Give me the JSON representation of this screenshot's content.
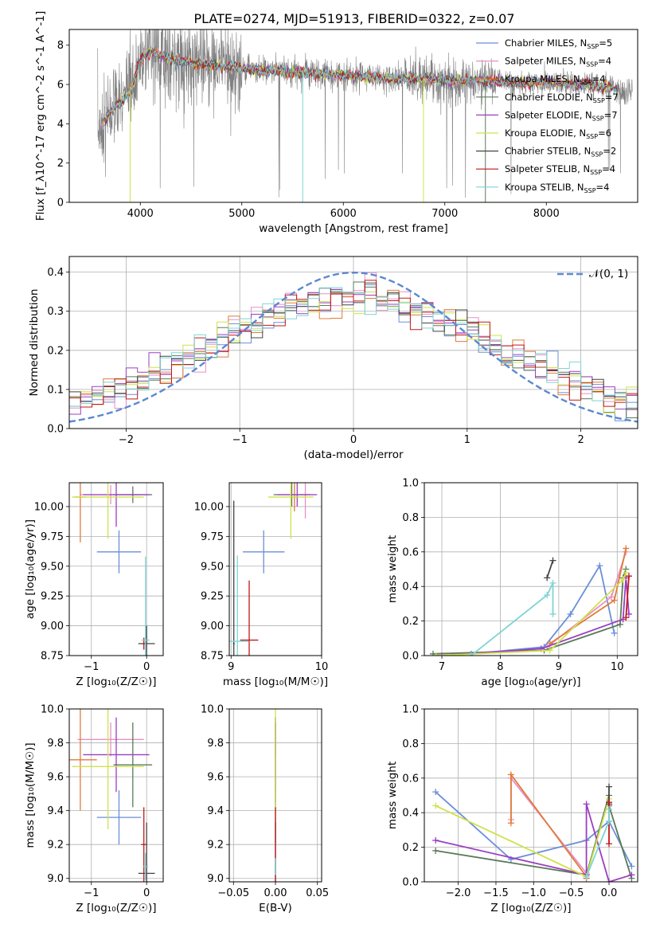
{
  "figure_title": "PLATE=0274, MJD=51913, FIBERID=0322, z=0.07",
  "models": [
    {
      "name": "Chabrier MILES",
      "nssp": "5",
      "color": "#6a8fd8"
    },
    {
      "name": "Salpeter MILES",
      "nssp": "4",
      "color": "#e890c8"
    },
    {
      "name": "Kroupa MILES",
      "nssp": "4",
      "color": "#e07b39"
    },
    {
      "name": "Chabrier ELODIE",
      "nssp": "7",
      "color": "#5a7a5a"
    },
    {
      "name": "Salpeter ELODIE",
      "nssp": "7",
      "color": "#9b3fc0"
    },
    {
      "name": "Kroupa ELODIE",
      "nssp": "6",
      "color": "#cfe24a"
    },
    {
      "name": "Chabrier STELIB",
      "nssp": "2",
      "color": "#444444"
    },
    {
      "name": "Salpeter STELIB",
      "nssp": "4",
      "color": "#c01818"
    },
    {
      "name": "Kroupa STELIB",
      "nssp": "4",
      "color": "#7fd4d4"
    }
  ],
  "chart_data": [
    {
      "id": "spectrum",
      "type": "line",
      "xlabel": "wavelength [Angstrom, rest frame]",
      "ylabel": "Flux [f_λ10^-17 erg cm^-2 s^-1 A^-1]",
      "xlim": [
        3300,
        8900
      ],
      "ylim": [
        0,
        8.8
      ],
      "xticks": [
        "4000",
        "5000",
        "6000",
        "7000",
        "8000"
      ],
      "yticks": [
        "0",
        "2",
        "4",
        "6",
        "8"
      ],
      "legend_position": "upper right",
      "data_color": "#808080",
      "continuum": {
        "x": [
          3550,
          3700,
          3800,
          3900,
          4000,
          4100,
          4300,
          4500,
          4700,
          5000,
          5300,
          5600,
          5900,
          6200,
          6500,
          6800,
          7100,
          7400,
          7700,
          8000,
          8300,
          8600,
          8800
        ],
        "y": [
          3.3,
          4.6,
          5.1,
          5.6,
          7.2,
          7.7,
          7.3,
          7.1,
          7.0,
          6.8,
          6.7,
          6.6,
          6.5,
          6.4,
          6.3,
          6.3,
          6.2,
          6.2,
          6.1,
          6.1,
          6.0,
          5.9,
          5.6
        ]
      }
    },
    {
      "id": "residual_hist",
      "type": "bar",
      "xlabel": "(data-model)/error",
      "ylabel": "Normed distribution",
      "xlim": [
        -2.5,
        2.5
      ],
      "ylim": [
        0,
        0.44
      ],
      "xticks": [
        "−2",
        "−1",
        "0",
        "1",
        "2"
      ],
      "yticks": [
        "0.0",
        "0.1",
        "0.2",
        "0.3",
        "0.4"
      ],
      "grid": true,
      "reference_curve": {
        "label": "𝒩(0, 1)",
        "color": "#5b88d0",
        "mean": 0,
        "sigma": 1
      },
      "bin_width": 0.1,
      "legend_position": "upper right"
    },
    {
      "id": "age_vs_Z",
      "type": "scatter",
      "xlabel": "Z [log₁₀(Z/Z☉)]",
      "ylabel": "age  [log₁₀(age/yr)]",
      "xlim": [
        -1.4,
        0.3
      ],
      "ylim": [
        8.75,
        10.2
      ],
      "xticks": [
        "−1",
        "0"
      ],
      "yticks": [
        "8.75",
        "9.00",
        "9.25",
        "9.50",
        "9.75",
        "10.00"
      ],
      "grid": true,
      "points": [
        {
          "model": 0,
          "x": -0.5,
          "xerr": 0.4,
          "y": 9.62,
          "yerr": 0.18
        },
        {
          "model": 1,
          "x": -0.65,
          "xerr": 0.55,
          "y": 10.1,
          "yerr": 0.08
        },
        {
          "model": 2,
          "x": -1.2,
          "xerr": 0.1,
          "y": 10.08,
          "yerr": 0.38
        },
        {
          "model": 3,
          "x": -0.25,
          "xerr": 0.35,
          "y": 10.1,
          "yerr": 0.07
        },
        {
          "model": 4,
          "x": -0.55,
          "xerr": 0.6,
          "y": 10.1,
          "yerr": 0.27
        },
        {
          "model": 5,
          "x": -0.7,
          "xerr": 0.65,
          "y": 10.08,
          "yerr": 0.35
        },
        {
          "model": 6,
          "x": 0.0,
          "xerr": 0.15,
          "y": 8.85,
          "yerr": 0.15
        },
        {
          "model": 7,
          "x": -0.05,
          "xerr": 0.03,
          "y": 8.85,
          "yerr": 0.05
        },
        {
          "model": 8,
          "x": -0.02,
          "xerr": 0.07,
          "y": 8.88,
          "yerr": 0.7
        }
      ]
    },
    {
      "id": "age_vs_mass",
      "type": "scatter",
      "xlabel": "mass [log₁₀(M/M☉)]",
      "ylabel": "",
      "xlim": [
        8.98,
        10.0
      ],
      "ylim": [
        8.75,
        10.2
      ],
      "xticks": [
        "9",
        "10"
      ],
      "yticks": [
        "8.75",
        "9.00",
        "9.25",
        "9.50",
        "9.75",
        "10.00"
      ],
      "grid": true,
      "points": [
        {
          "model": 0,
          "x": 9.36,
          "xerr": 0.23,
          "y": 9.62,
          "yerr": 0.18
        },
        {
          "model": 1,
          "x": 9.82,
          "xerr": 0.1,
          "y": 10.1,
          "yerr": 0.2
        },
        {
          "model": 2,
          "x": 9.7,
          "xerr": 0.05,
          "y": 10.08,
          "yerr": 0.12
        },
        {
          "model": 3,
          "x": 9.67,
          "xerr": 0.2,
          "y": 10.1,
          "yerr": 0.1
        },
        {
          "model": 4,
          "x": 9.73,
          "xerr": 0.22,
          "y": 10.1,
          "yerr": 0.1
        },
        {
          "model": 5,
          "x": 9.66,
          "xerr": 0.25,
          "y": 10.08,
          "yerr": 0.35
        },
        {
          "model": 6,
          "x": 9.03,
          "xerr": 0.01,
          "y": 8.85,
          "yerr": 1.2
        },
        {
          "model": 7,
          "x": 9.2,
          "xerr": 0.1,
          "y": 8.88,
          "yerr": 0.5
        },
        {
          "model": 8,
          "x": 9.07,
          "xerr": 0.12,
          "y": 8.87,
          "yerr": 0.72
        }
      ]
    },
    {
      "id": "weight_vs_age",
      "type": "line",
      "xlabel": "age  [log₁₀(age/yr)]",
      "ylabel": "mass weight",
      "xlim": [
        6.7,
        10.35
      ],
      "ylim": [
        0,
        1.0
      ],
      "xticks": [
        "7",
        "8",
        "9",
        "10"
      ],
      "yticks": [
        "0.0",
        "0.2",
        "0.4",
        "0.6",
        "0.8",
        "1.0"
      ],
      "grid": true,
      "series": [
        {
          "model": 0,
          "x": [
            7.5,
            8.75,
            9.2,
            9.7,
            9.95
          ],
          "y": [
            0.01,
            0.05,
            0.24,
            0.52,
            0.13
          ]
        },
        {
          "model": 1,
          "x": [
            8.8,
            9.9,
            10.15
          ],
          "y": [
            0.05,
            0.34,
            0.6
          ]
        },
        {
          "model": 2,
          "x": [
            8.85,
            9.95,
            10.15
          ],
          "y": [
            0.07,
            0.32,
            0.62
          ]
        },
        {
          "model": 3,
          "x": [
            6.85,
            8.75,
            10.05,
            10.1,
            10.15
          ],
          "y": [
            0.01,
            0.03,
            0.18,
            0.45,
            0.5
          ]
        },
        {
          "model": 4,
          "x": [
            7.0,
            8.7,
            10.1,
            10.15,
            10.2
          ],
          "y": [
            0.0,
            0.04,
            0.21,
            0.45,
            0.24
          ]
        },
        {
          "model": 5,
          "x": [
            6.9,
            8.85,
            10.1,
            10.15
          ],
          "y": [
            0.0,
            0.03,
            0.44,
            0.48
          ]
        },
        {
          "model": 6,
          "x": [
            8.8,
            8.9
          ],
          "y": [
            0.45,
            0.55
          ]
        },
        {
          "model": 7,
          "x": [
            10.15,
            10.2
          ],
          "y": [
            0.22,
            0.46
          ]
        },
        {
          "model": 8,
          "x": [
            7.5,
            8.8,
            8.9,
            8.9
          ],
          "y": [
            0.0,
            0.35,
            0.42,
            0.24
          ]
        }
      ]
    },
    {
      "id": "mass_vs_Z",
      "type": "scatter",
      "xlabel": "Z [log₁₀(Z/Z☉)]",
      "ylabel": "mass [log₁₀(M/M☉)]",
      "xlim": [
        -1.4,
        0.3
      ],
      "ylim": [
        8.98,
        10.0
      ],
      "xticks": [
        "−1",
        "0"
      ],
      "yticks": [
        "9.0",
        "9.2",
        "9.4",
        "9.6",
        "9.8",
        "10.0"
      ],
      "grid": true,
      "points": [
        {
          "model": 0,
          "x": -0.5,
          "xerr": 0.4,
          "y": 9.36,
          "yerr": 0.16
        },
        {
          "model": 1,
          "x": -0.65,
          "xerr": 0.6,
          "y": 9.82,
          "yerr": 0.1
        },
        {
          "model": 2,
          "x": -1.2,
          "xerr": 0.3,
          "y": 9.7,
          "yerr": 0.3
        },
        {
          "model": 3,
          "x": -0.25,
          "xerr": 0.35,
          "y": 9.67,
          "yerr": 0.25
        },
        {
          "model": 4,
          "x": -0.55,
          "xerr": 0.6,
          "y": 9.73,
          "yerr": 0.22
        },
        {
          "model": 5,
          "x": -0.7,
          "xerr": 0.65,
          "y": 9.66,
          "yerr": 0.37
        },
        {
          "model": 6,
          "x": 0.0,
          "xerr": 0.15,
          "y": 9.03,
          "yerr": 0.3
        },
        {
          "model": 7,
          "x": -0.05,
          "xerr": 0.05,
          "y": 9.2,
          "yerr": 0.22
        },
        {
          "model": 8,
          "x": -0.02,
          "xerr": 0.05,
          "y": 9.07,
          "yerr": 0.08
        }
      ]
    },
    {
      "id": "mass_vs_ebv",
      "type": "scatter",
      "xlabel": "E(B-V)",
      "ylabel": "",
      "xlim": [
        -0.055,
        0.055
      ],
      "ylim": [
        8.98,
        10.0
      ],
      "xticks": [
        "−0.05",
        "0.00",
        "0.05"
      ],
      "yticks": [
        "9.0",
        "9.2",
        "9.4",
        "9.6",
        "9.8",
        "10.0"
      ],
      "grid": true,
      "points": [
        {
          "model": 0,
          "x": 0,
          "xerr": 0,
          "y": 9.36,
          "yerr": 0.15
        },
        {
          "model": 1,
          "x": 0,
          "xerr": 0,
          "y": 9.82,
          "yerr": 0.1
        },
        {
          "model": 2,
          "x": 0,
          "xerr": 0,
          "y": 9.7,
          "yerr": 0.25
        },
        {
          "model": 3,
          "x": 0,
          "xerr": 0,
          "y": 9.67,
          "yerr": 0.25
        },
        {
          "model": 4,
          "x": 0,
          "xerr": 0,
          "y": 9.73,
          "yerr": 0.22
        },
        {
          "model": 5,
          "x": 0,
          "xerr": 0,
          "y": 9.66,
          "yerr": 0.35
        },
        {
          "model": 6,
          "x": 0,
          "xerr": 0,
          "y": 9.03,
          "yerr": 0.3
        },
        {
          "model": 7,
          "x": 0,
          "xerr": 0,
          "y": 9.2,
          "yerr": 0.22
        },
        {
          "model": 8,
          "x": 0,
          "xerr": 0,
          "y": 9.07,
          "yerr": 0.05
        }
      ]
    },
    {
      "id": "weight_vs_Z",
      "type": "line",
      "xlabel": "Z [log₁₀(Z/Z☉)]",
      "ylabel": "mass weight",
      "xlim": [
        -2.45,
        0.38
      ],
      "ylim": [
        0,
        1.0
      ],
      "xticks": [
        "−2.0",
        "−1.5",
        "−1.0",
        "−0.5",
        "0.0"
      ],
      "yticks": [
        "0.0",
        "0.2",
        "0.4",
        "0.6",
        "0.8",
        "1.0"
      ],
      "grid": true,
      "series": [
        {
          "model": 0,
          "x": [
            -2.3,
            -1.3,
            -0.3,
            0.0,
            0.3
          ],
          "y": [
            0.52,
            0.13,
            0.24,
            0.35,
            0.09
          ]
        },
        {
          "model": 1,
          "x": [
            -1.3,
            -1.3,
            -0.3,
            -0.3
          ],
          "y": [
            0.36,
            0.6,
            0.05,
            0.02
          ]
        },
        {
          "model": 2,
          "x": [
            -1.3,
            -1.3,
            -0.3,
            -0.3
          ],
          "y": [
            0.34,
            0.62,
            0.03,
            0.02
          ]
        },
        {
          "model": 3,
          "x": [
            -2.3,
            -0.3,
            0.0,
            0.0,
            0.3
          ],
          "y": [
            0.18,
            0.04,
            0.5,
            0.44,
            0.02
          ]
        },
        {
          "model": 4,
          "x": [
            -2.3,
            -0.3,
            -0.3,
            0.0,
            0.3
          ],
          "y": [
            0.24,
            0.04,
            0.45,
            0.0,
            0.04
          ]
        },
        {
          "model": 5,
          "x": [
            -2.3,
            -0.3,
            0.0
          ],
          "y": [
            0.44,
            0.03,
            0.48
          ]
        },
        {
          "model": 6,
          "x": [
            0.0,
            0.0
          ],
          "y": [
            0.45,
            0.55
          ]
        },
        {
          "model": 7,
          "x": [
            0.0,
            0.0
          ],
          "y": [
            0.22,
            0.46
          ]
        },
        {
          "model": 8,
          "x": [
            -0.3,
            0.0,
            0.0
          ],
          "y": [
            0.03,
            0.35,
            0.42
          ]
        }
      ]
    }
  ]
}
